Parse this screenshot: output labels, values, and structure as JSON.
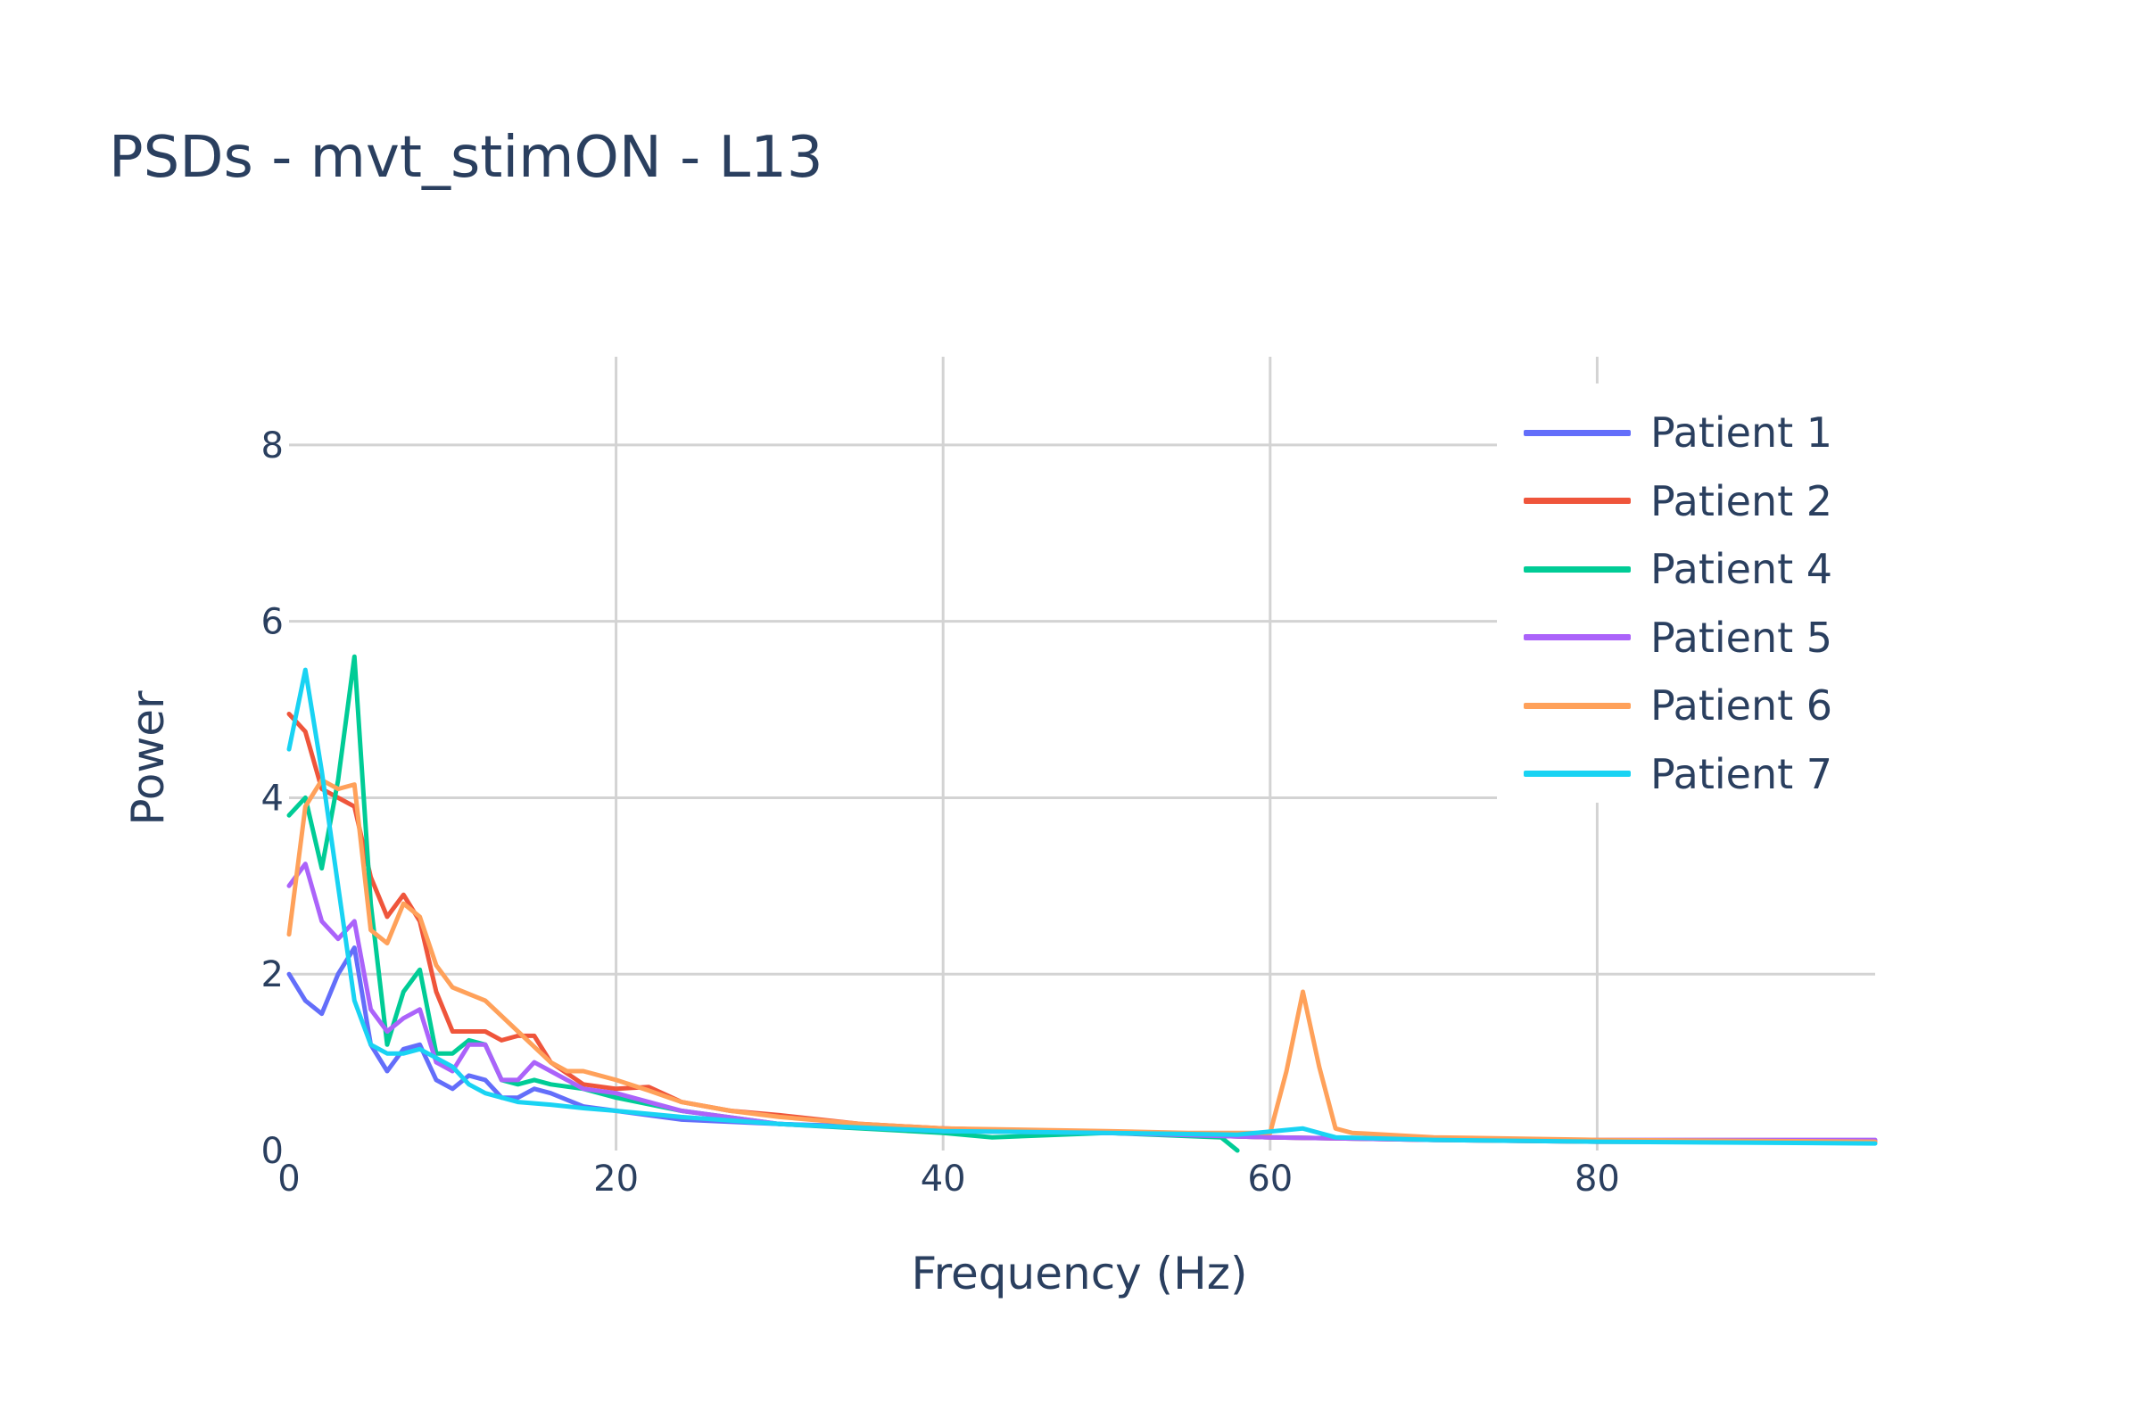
{
  "chart_data": {
    "type": "line",
    "title": "PSDs - mvt_stimON - L13",
    "xlabel": "Frequency (Hz)",
    "ylabel": "Power",
    "xlim": [
      0,
      97
    ],
    "ylim": [
      0,
      9
    ],
    "x_ticks": [
      0,
      20,
      40,
      60,
      80
    ],
    "y_ticks": [
      0,
      2,
      4,
      6,
      8
    ],
    "grid": true,
    "legend_position": "top-right",
    "series": [
      {
        "name": "Patient 1",
        "color": "#636efa",
        "x": [
          0,
          1,
          2,
          3,
          4,
          5,
          6,
          7,
          8,
          9,
          10,
          11,
          12,
          13,
          14,
          15,
          16,
          18,
          20,
          24,
          30,
          40,
          50,
          60,
          70,
          80,
          97
        ],
        "y": [
          2.0,
          1.7,
          1.55,
          2.0,
          2.3,
          1.2,
          0.9,
          1.15,
          1.2,
          0.8,
          0.7,
          0.85,
          0.8,
          0.6,
          0.6,
          0.7,
          0.65,
          0.5,
          0.45,
          0.35,
          0.3,
          0.25,
          0.2,
          0.15,
          0.12,
          0.1,
          0.1
        ]
      },
      {
        "name": "Patient 2",
        "color": "#ef553b",
        "x": [
          0,
          1,
          2,
          3,
          4,
          5,
          6,
          7,
          8,
          9,
          10,
          11,
          12,
          13,
          14,
          15,
          16,
          18,
          20,
          22,
          24,
          27,
          30,
          35,
          40,
          50,
          60,
          70,
          80,
          97
        ],
        "y": [
          4.95,
          4.75,
          4.1,
          4.0,
          3.9,
          3.1,
          2.65,
          2.9,
          2.6,
          1.8,
          1.35,
          1.35,
          1.35,
          1.25,
          1.3,
          1.3,
          1.0,
          0.75,
          0.7,
          0.72,
          0.55,
          0.45,
          0.4,
          0.3,
          0.25,
          0.2,
          0.15,
          0.12,
          0.1,
          0.1
        ]
      },
      {
        "name": "Patient 4",
        "color": "#00cc96",
        "x": [
          0,
          1,
          2,
          3,
          4,
          5,
          6,
          7,
          8,
          9,
          10,
          11,
          12,
          13,
          14,
          15,
          16,
          18,
          20,
          24,
          30,
          40,
          43,
          50,
          57,
          58
        ],
        "y": [
          3.8,
          4.0,
          3.2,
          4.2,
          5.6,
          2.8,
          1.2,
          1.8,
          2.05,
          1.1,
          1.1,
          1.25,
          1.2,
          0.8,
          0.75,
          0.8,
          0.75,
          0.7,
          0.6,
          0.45,
          0.3,
          0.2,
          0.15,
          0.2,
          0.15,
          0.0
        ]
      },
      {
        "name": "Patient 5",
        "color": "#ab63fa",
        "x": [
          0,
          1,
          2,
          3,
          4,
          5,
          6,
          7,
          8,
          9,
          10,
          11,
          12,
          13,
          14,
          15,
          16,
          18,
          20,
          24,
          30,
          40,
          50,
          60,
          70,
          80,
          97
        ],
        "y": [
          3.0,
          3.25,
          2.6,
          2.4,
          2.6,
          1.6,
          1.35,
          1.5,
          1.6,
          1.0,
          0.9,
          1.2,
          1.2,
          0.8,
          0.8,
          1.0,
          0.9,
          0.7,
          0.65,
          0.45,
          0.3,
          0.22,
          0.2,
          0.15,
          0.12,
          0.12,
          0.12
        ]
      },
      {
        "name": "Patient 6",
        "color": "#ffa15a",
        "x": [
          0,
          1,
          2,
          3,
          4,
          5,
          6,
          7,
          8,
          9,
          10,
          12,
          14,
          16,
          17,
          18,
          19,
          20,
          22,
          24,
          27,
          30,
          35,
          40,
          50,
          55,
          60,
          61,
          62,
          63,
          64,
          65,
          70,
          80,
          97
        ],
        "y": [
          2.45,
          3.9,
          4.2,
          4.1,
          4.15,
          2.5,
          2.35,
          2.8,
          2.65,
          2.1,
          1.85,
          1.7,
          1.35,
          1.0,
          0.9,
          0.9,
          0.85,
          0.8,
          0.68,
          0.55,
          0.45,
          0.38,
          0.3,
          0.25,
          0.22,
          0.2,
          0.2,
          0.9,
          1.8,
          0.95,
          0.25,
          0.2,
          0.15,
          0.12,
          0.1
        ]
      },
      {
        "name": "Patient 7",
        "color": "#19d3f3",
        "x": [
          0,
          1,
          2,
          3,
          4,
          5,
          6,
          7,
          8,
          9,
          10,
          11,
          12,
          14,
          16,
          18,
          20,
          24,
          30,
          40,
          50,
          58,
          62,
          64,
          70,
          80,
          97
        ],
        "y": [
          4.55,
          5.45,
          4.3,
          3.0,
          1.7,
          1.2,
          1.1,
          1.1,
          1.15,
          1.05,
          0.95,
          0.75,
          0.65,
          0.55,
          0.52,
          0.48,
          0.45,
          0.38,
          0.3,
          0.22,
          0.2,
          0.18,
          0.25,
          0.15,
          0.12,
          0.1,
          0.08
        ]
      }
    ]
  }
}
